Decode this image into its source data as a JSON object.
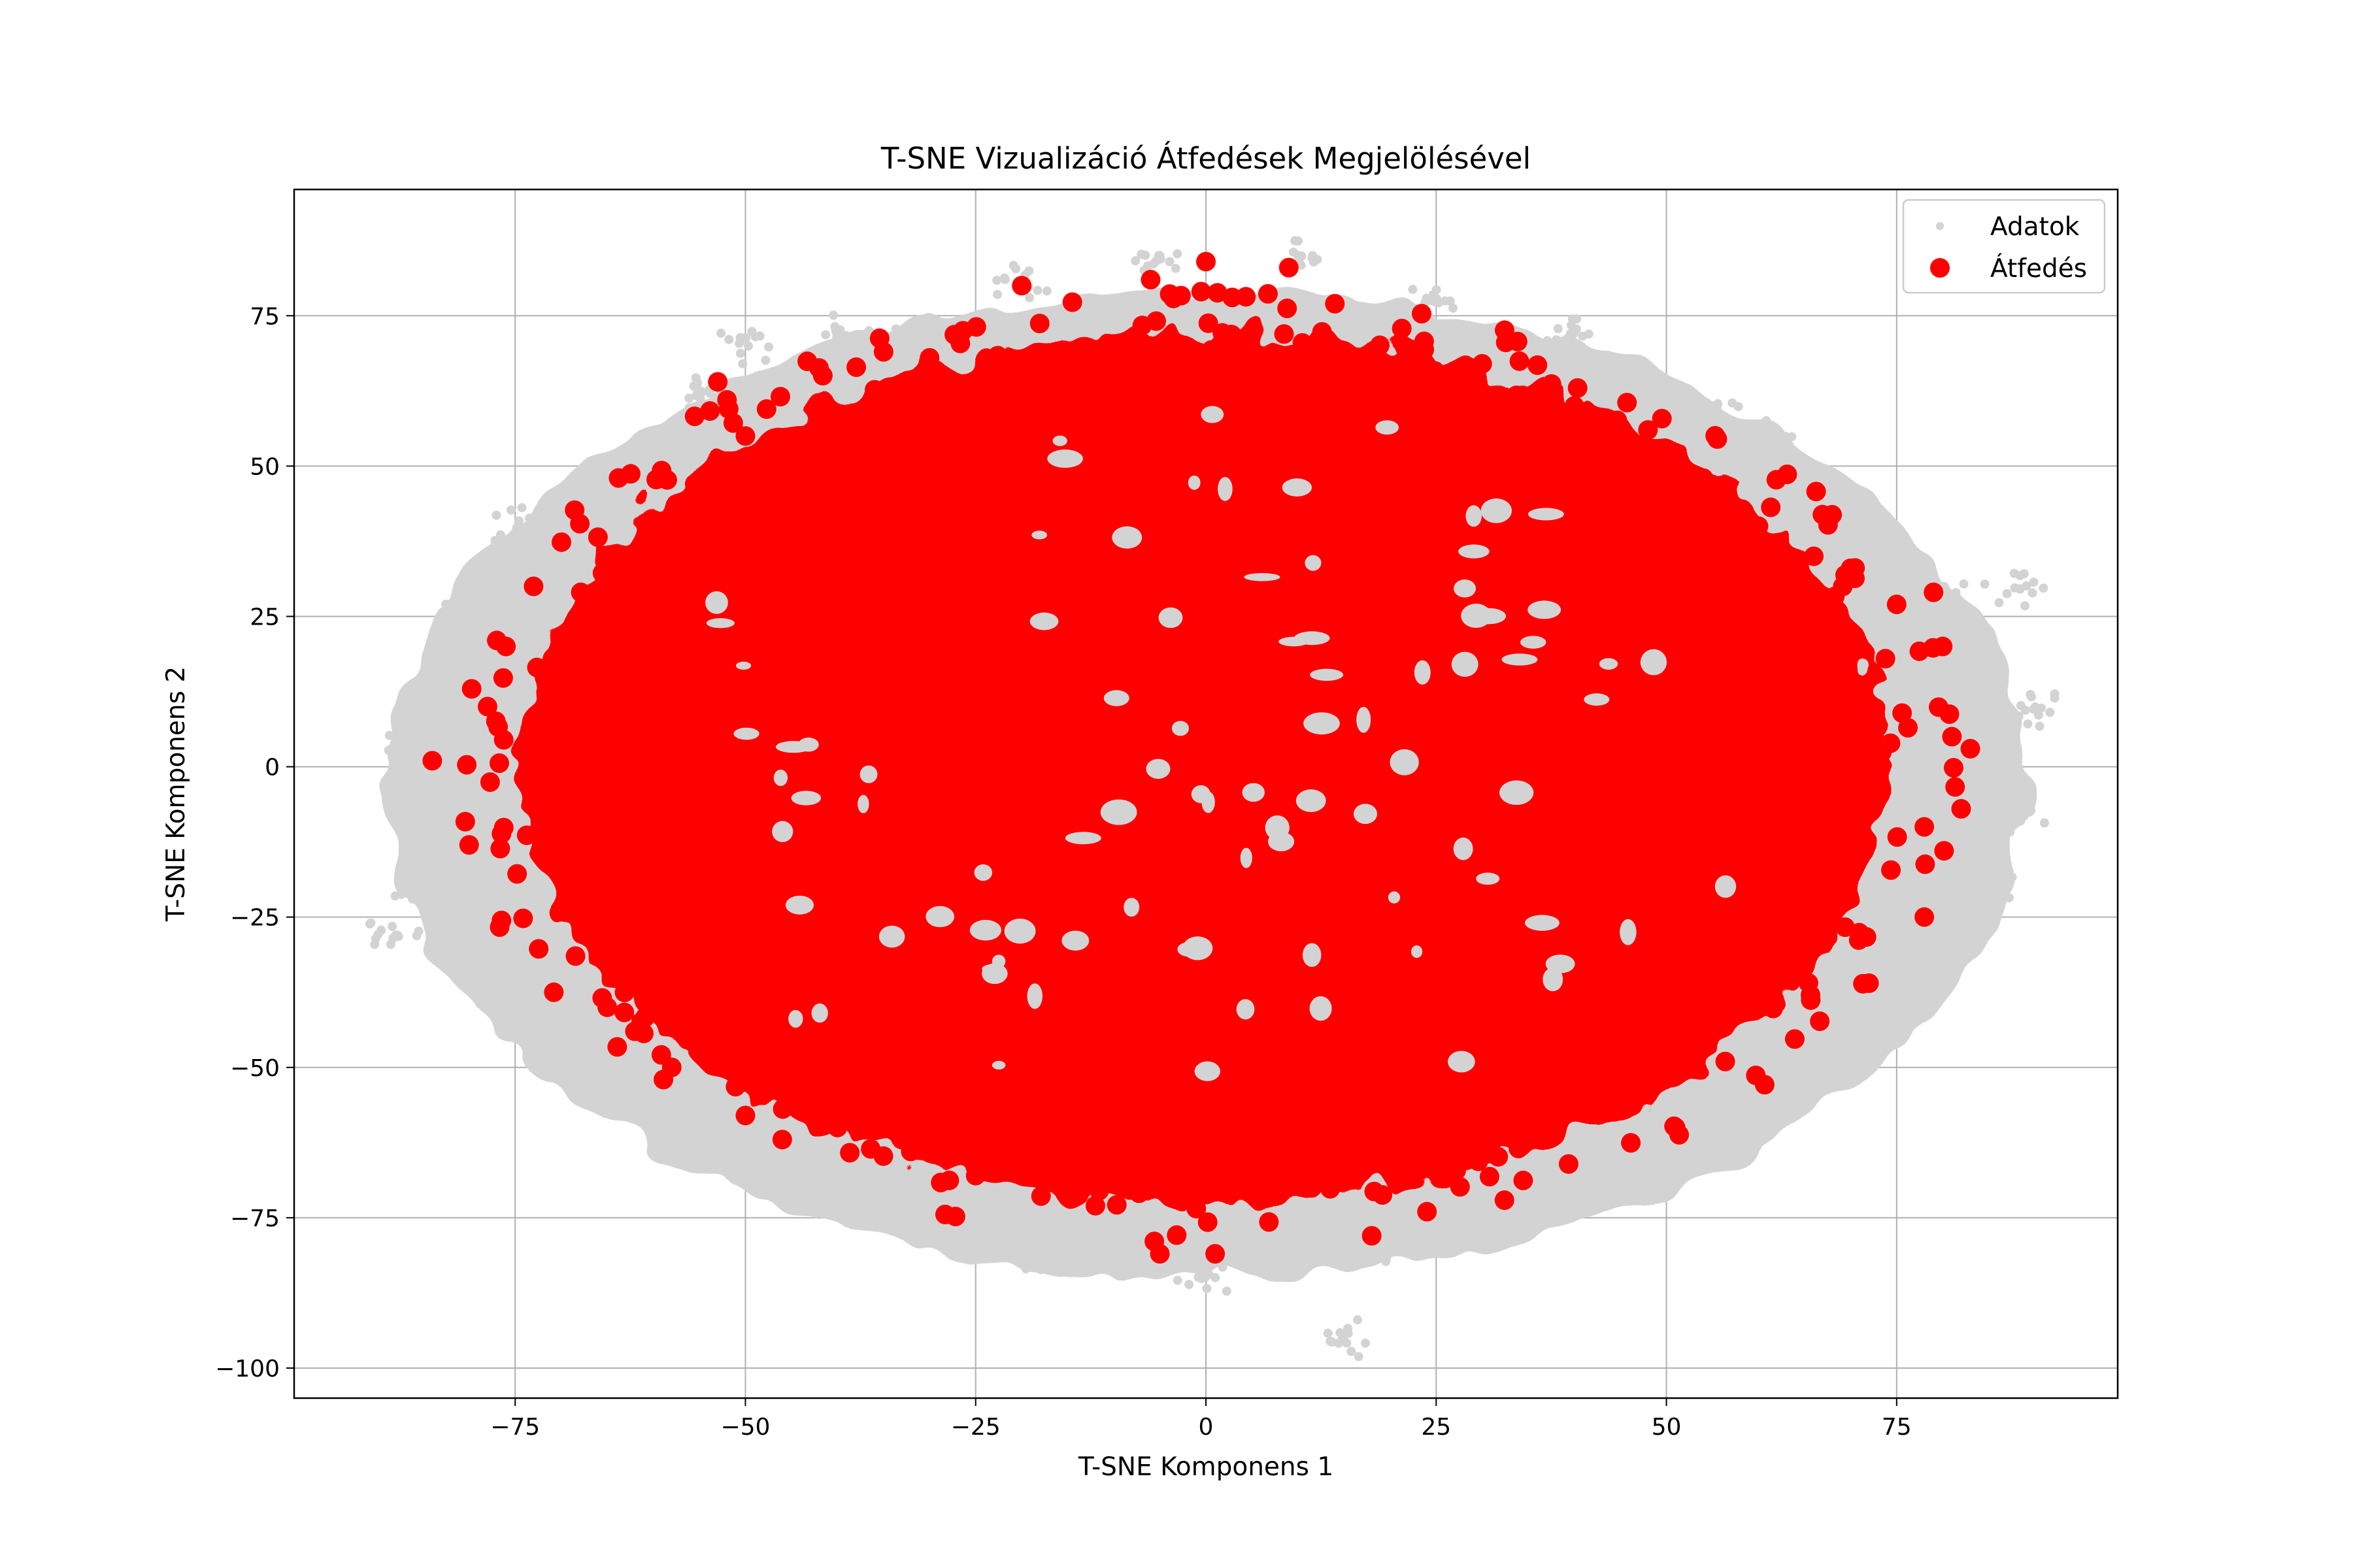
{
  "chart_data": {
    "type": "scatter",
    "title": "T-SNE Vizualizáció Átfedések Megjelölésével",
    "xlabel": "T-SNE Komponens 1",
    "ylabel": "T-SNE Komponens 2",
    "xlim": [
      -99,
      99
    ],
    "ylim": [
      -105,
      96
    ],
    "xticks": [
      {
        "value": -75,
        "label": "−75"
      },
      {
        "value": -50,
        "label": "−50"
      },
      {
        "value": -25,
        "label": "−25"
      },
      {
        "value": 0,
        "label": "0"
      },
      {
        "value": 25,
        "label": "25"
      },
      {
        "value": 50,
        "label": "50"
      },
      {
        "value": 75,
        "label": "75"
      }
    ],
    "yticks": [
      {
        "value": -100,
        "label": "−100"
      },
      {
        "value": -75,
        "label": "−75"
      },
      {
        "value": -50,
        "label": "−50"
      },
      {
        "value": -25,
        "label": "−25"
      },
      {
        "value": 0,
        "label": "0"
      },
      {
        "value": 25,
        "label": "25"
      },
      {
        "value": 50,
        "label": "50"
      },
      {
        "value": 75,
        "label": "75"
      }
    ],
    "grid": true,
    "legend_position": "top-right",
    "series": [
      {
        "name": "Adatok",
        "color": "#d3d3d3",
        "marker": "small-dot",
        "extent": {
          "cx": 0,
          "cy": -3,
          "rx": 89,
          "ry": 82
        },
        "approximate_points": [
          [
            -88,
            -28
          ],
          [
            -85,
            -20
          ],
          [
            -80,
            25
          ],
          [
            -75,
            40
          ],
          [
            -70,
            30
          ],
          [
            -62,
            -45
          ],
          [
            -55,
            62
          ],
          [
            -50,
            70
          ],
          [
            -45,
            65
          ],
          [
            -40,
            72
          ],
          [
            -35,
            70
          ],
          [
            -20,
            80
          ],
          [
            -5,
            85
          ],
          [
            10,
            85
          ],
          [
            25,
            78
          ],
          [
            40,
            72
          ],
          [
            55,
            60
          ],
          [
            62,
            55
          ],
          [
            72,
            35
          ],
          [
            80,
            30
          ],
          [
            88,
            30
          ],
          [
            90,
            10
          ],
          [
            89,
            -8
          ],
          [
            85,
            -20
          ],
          [
            75,
            -35
          ],
          [
            70,
            -48
          ],
          [
            55,
            -55
          ],
          [
            40,
            -70
          ],
          [
            20,
            -80
          ],
          [
            0,
            -85
          ],
          [
            -20,
            -82
          ],
          [
            -40,
            -72
          ],
          [
            -55,
            -58
          ],
          [
            -65,
            -45
          ],
          [
            -78,
            -30
          ],
          [
            -84,
            -5
          ],
          [
            -86,
            3
          ],
          [
            15,
            -95
          ],
          [
            -45,
            -70
          ]
        ]
      },
      {
        "name": "Átfedés",
        "color": "#ff0000",
        "marker": "large-dot",
        "extent": {
          "cx": 0,
          "cy": 0,
          "rx": 80,
          "ry": 78
        },
        "approximate_points": [
          [
            -84,
            1
          ],
          [
            -80,
            -13
          ],
          [
            -77,
            21
          ],
          [
            -76,
            20
          ],
          [
            -73,
            30
          ],
          [
            -68,
            25
          ],
          [
            -65,
            -40
          ],
          [
            -62,
            -44
          ],
          [
            -58,
            -50
          ],
          [
            -53,
            64
          ],
          [
            -52,
            61
          ],
          [
            -50,
            55
          ],
          [
            -50,
            -58
          ],
          [
            -46,
            -62
          ],
          [
            -40,
            -60
          ],
          [
            -35,
            69
          ],
          [
            -30,
            68
          ],
          [
            -25,
            -68
          ],
          [
            -20,
            80
          ],
          [
            -12,
            -73
          ],
          [
            -6,
            81
          ],
          [
            -5,
            -81
          ],
          [
            0,
            84
          ],
          [
            1,
            -81
          ],
          [
            9,
            83
          ],
          [
            14,
            77
          ],
          [
            18,
            -78
          ],
          [
            24,
            -74
          ],
          [
            30,
            67
          ],
          [
            40,
            60
          ],
          [
            48,
            56
          ],
          [
            51,
            -60
          ],
          [
            54,
            48
          ],
          [
            60,
            40
          ],
          [
            66,
            35
          ],
          [
            70,
            33
          ],
          [
            72,
            -36
          ],
          [
            75,
            27
          ],
          [
            78,
            -25
          ],
          [
            79,
            29
          ],
          [
            80,
            20
          ],
          [
            81,
            5
          ],
          [
            83,
            3
          ],
          [
            82,
            -7
          ],
          [
            78,
            -10
          ],
          [
            45,
            -55
          ],
          [
            -70,
            -15
          ],
          [
            -78,
            10
          ]
        ]
      }
    ]
  },
  "colors": {
    "data_points": "#d3d3d3",
    "overlap_points": "#ff0000",
    "grid": "#b0b0b0",
    "axes": "#000000",
    "legend_border": "#cccccc"
  }
}
